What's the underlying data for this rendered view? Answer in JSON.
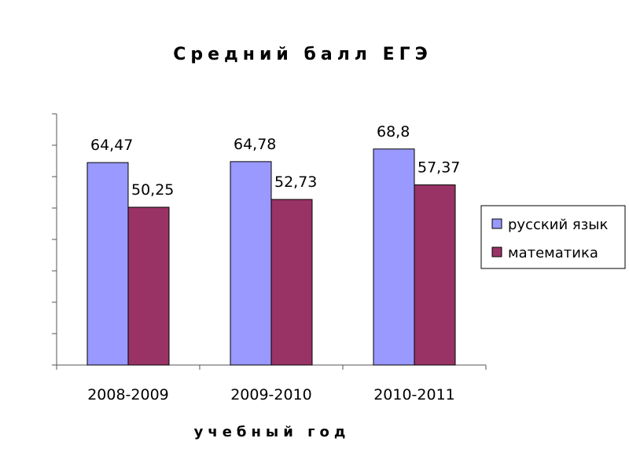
{
  "chart_data": {
    "type": "bar",
    "title": "Средний балл ЕГЭ",
    "xlabel": "учебный год",
    "ylabel": "",
    "categories": [
      "2008-2009",
      "2009-2010",
      "2010-2011"
    ],
    "series": [
      {
        "name": "русский язык",
        "values": [
          64.47,
          64.78,
          68.8
        ],
        "labels": [
          "64,47",
          "64,78",
          "68,8"
        ],
        "color": "#9999ff"
      },
      {
        "name": "математика",
        "values": [
          50.25,
          52.73,
          57.37
        ],
        "labels": [
          "50,25",
          "52,73",
          "57,37"
        ],
        "color": "#993366"
      }
    ],
    "ylim": [
      0,
      80
    ],
    "y_tick_step": 10,
    "grid": false,
    "legend_position": "right"
  }
}
